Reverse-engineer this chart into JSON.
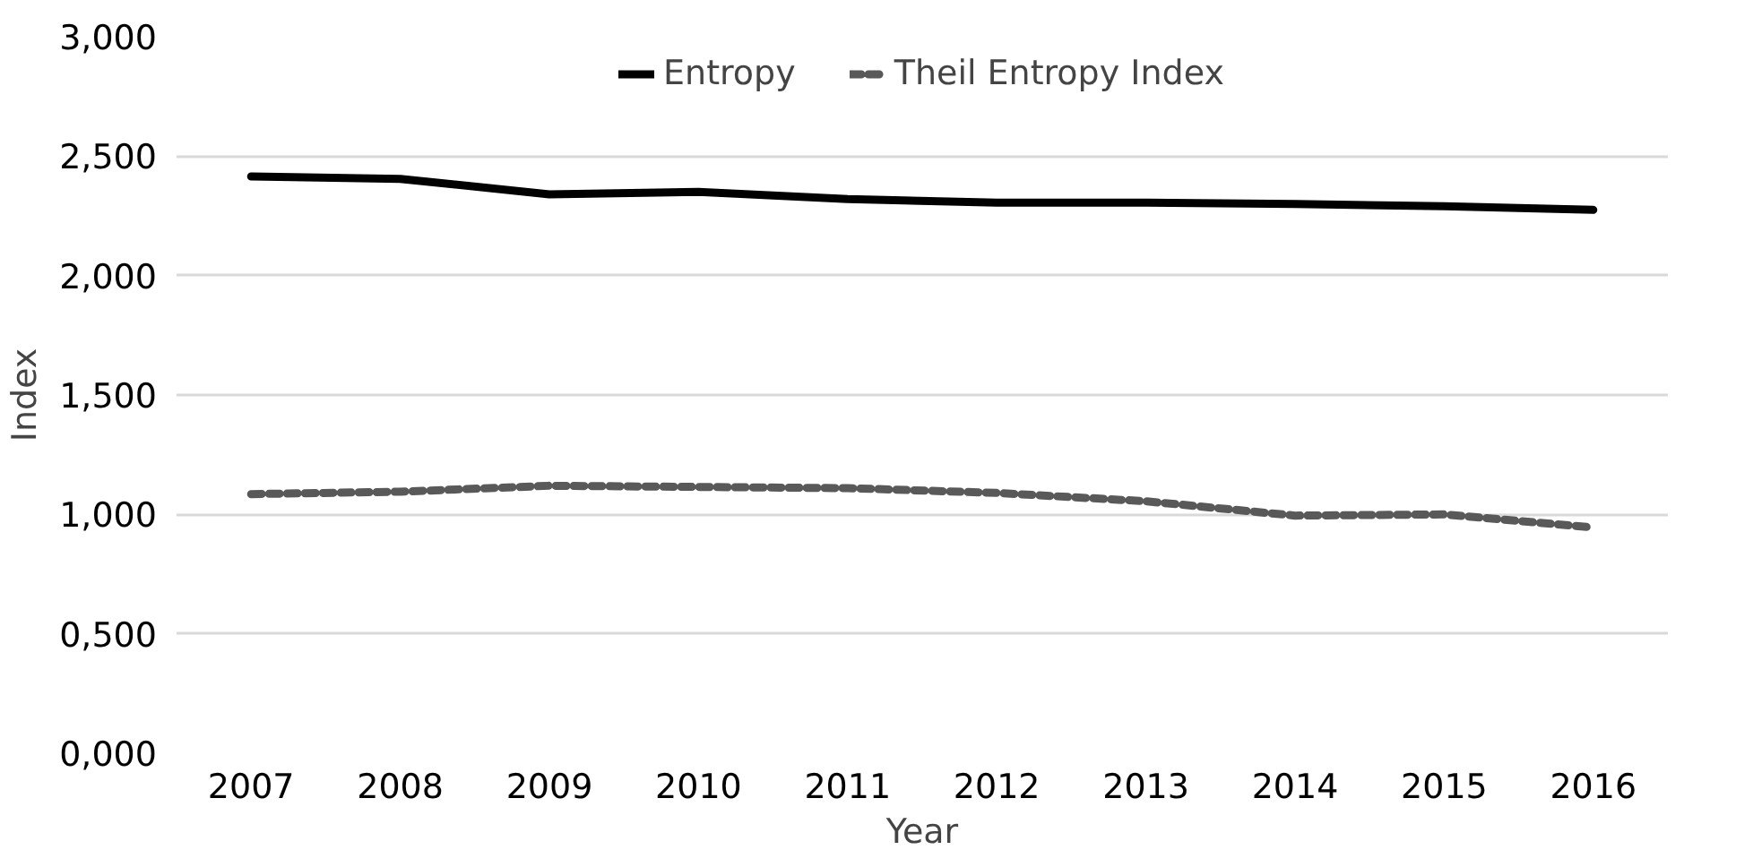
{
  "chart_data": {
    "type": "line",
    "xlabel": "Year",
    "ylabel": "Index",
    "categories": [
      "2007",
      "2008",
      "2009",
      "2010",
      "2011",
      "2012",
      "2013",
      "2014",
      "2015",
      "2016"
    ],
    "series": [
      {
        "name": "Entropy",
        "color": "#000000",
        "line_style": "solid",
        "values": [
          2.415,
          2.405,
          2.34,
          2.35,
          2.32,
          2.305,
          2.305,
          2.3,
          2.29,
          2.275
        ]
      },
      {
        "name": "Theil Entropy Index",
        "color": "#595959",
        "line_style": "dashed",
        "values": [
          1.085,
          1.095,
          1.12,
          1.115,
          1.11,
          1.09,
          1.055,
          0.995,
          1.0,
          0.945
        ]
      }
    ],
    "ylim": [
      0,
      3
    ],
    "yticks": [
      {
        "value": 0,
        "label": "0,000"
      },
      {
        "value": 0.5,
        "label": "0,500"
      },
      {
        "value": 1,
        "label": "1,000"
      },
      {
        "value": 1.5,
        "label": "1,500"
      },
      {
        "value": 2,
        "label": "2,000"
      },
      {
        "value": 2.5,
        "label": "2,500"
      },
      {
        "value": 3,
        "label": "3,000"
      }
    ],
    "grid": "y",
    "legend": "top",
    "marker": "none"
  }
}
